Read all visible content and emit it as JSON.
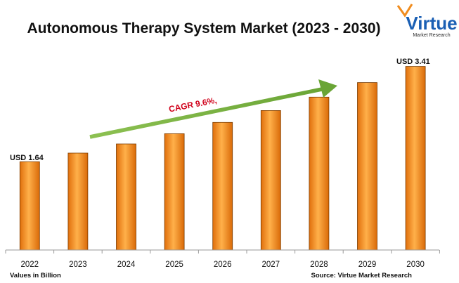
{
  "chart_data": {
    "type": "bar",
    "title": "Autonomous Therapy System Market (2023 - 2030)",
    "categories": [
      "2022",
      "2023",
      "2024",
      "2025",
      "2026",
      "2027",
      "2028",
      "2029",
      "2030"
    ],
    "values": [
      1.64,
      1.8,
      1.97,
      2.16,
      2.37,
      2.59,
      2.84,
      3.11,
      3.41
    ],
    "ylim": [
      0,
      3.6
    ],
    "grid": false,
    "bar_color": "#f08c1e",
    "data_labels": {
      "first": "USD 1.64",
      "last": "USD 3.41"
    },
    "annotation": {
      "text": "CAGR 9.6%,",
      "arrow_color": "#7bb342",
      "text_color": "#d0001a"
    }
  },
  "footer": {
    "units_note": "Values in Billion",
    "source": "Source: Virtue Market Research"
  },
  "logo": {
    "name": "Virtue",
    "tagline": "Market Research"
  }
}
